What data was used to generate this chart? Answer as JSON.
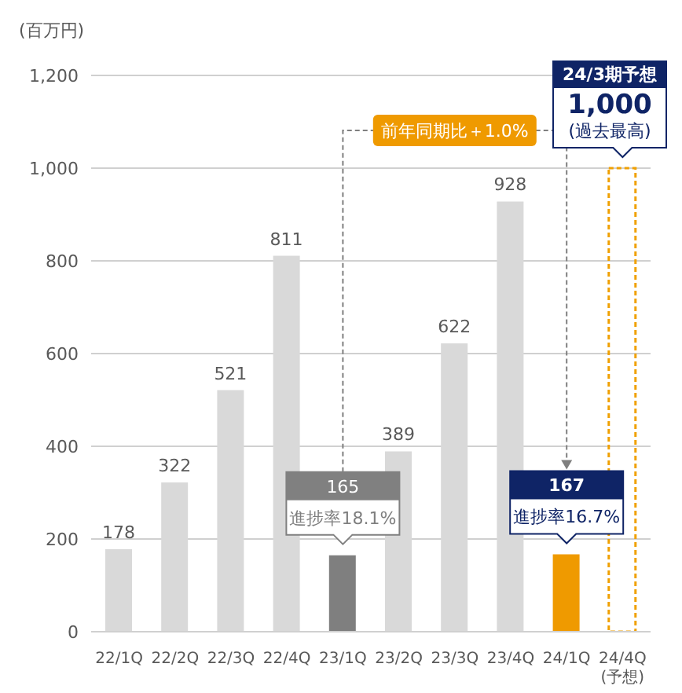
{
  "chart_data": {
    "type": "bar",
    "ylabel": "(百万円)",
    "categories": [
      "22/1Q",
      "22/2Q",
      "22/3Q",
      "22/4Q",
      "23/1Q",
      "23/2Q",
      "23/3Q",
      "23/4Q",
      "24/1Q",
      "24/4Q (予想)"
    ],
    "stacked": true,
    "series": [
      {
        "color": "#d9d9d9",
        "colors": [
          "#d9d9d9",
          "#d9d9d9",
          "#d9d9d9",
          "#d9d9d9",
          "#7f7f7f",
          "#d9d9d9",
          "#d9d9d9",
          "#d9d9d9",
          "#ef9a00",
          null
        ],
        "values": [
          178,
          322,
          521,
          811,
          165,
          389,
          622,
          928,
          167,
          null
        ],
        "value_labels": [
          "178",
          "322",
          "521",
          "811",
          null,
          "389",
          "622",
          "928",
          null,
          null
        ]
      },
      {
        "color": "#f0a000",
        "line_style": "dashed",
        "values": [
          null,
          null,
          null,
          null,
          null,
          null,
          null,
          null,
          null,
          1000
        ]
      }
    ],
    "ylim": [
      0,
      1200
    ],
    "yticks": [
      {
        "value": 0,
        "label": "0"
      },
      {
        "value": 200,
        "label": "200"
      },
      {
        "value": 400,
        "label": "400"
      },
      {
        "value": 600,
        "label": "600"
      },
      {
        "value": 800,
        "label": "800"
      },
      {
        "value": 1000,
        "label": "1,000"
      },
      {
        "value": 1200,
        "label": "1,200"
      }
    ],
    "grid": "y",
    "legend": false,
    "annotations": [
      "165",
      "進捗率18.1%",
      "167",
      "進捗率16.7%",
      "24/3期予想",
      "1,000",
      "(過去最高)",
      "前年同期比＋1.0%"
    ]
  }
}
